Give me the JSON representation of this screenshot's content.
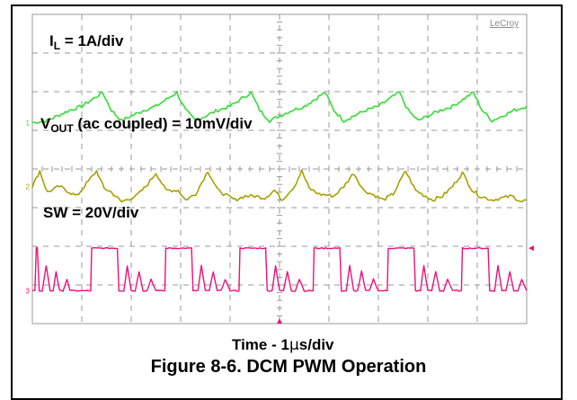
{
  "chart_data": {
    "type": "line",
    "title": "Figure 8-6. DCM PWM Operation",
    "brand": "LeCroy",
    "xlabel": {
      "prefix": "Time - 1",
      "mu": "μ",
      "suffix": "s/div"
    },
    "x_divisions": 10,
    "y_divisions": 8,
    "series": [
      {
        "name": "I_L",
        "label_main": "I",
        "label_sub": "L",
        "label_rest": " = 1A/div",
        "color": "#33dd33",
        "marker": "1",
        "x_div": [
          0,
          0.3,
          0.75,
          1.0,
          1.42,
          1.6,
          1.8,
          2.25,
          2.5,
          2.92,
          3.1,
          3.3,
          3.75,
          4.0,
          4.42,
          4.6,
          4.8,
          5.25,
          5.5,
          5.92,
          6.1,
          6.3,
          6.75,
          7.0,
          7.42,
          7.6,
          7.8,
          8.25,
          8.5,
          8.92,
          9.1,
          9.3,
          9.75,
          10.0
        ],
        "y_div": [
          5.2,
          5.25,
          5.52,
          5.62,
          5.98,
          5.52,
          5.25,
          5.52,
          5.62,
          5.98,
          5.52,
          5.25,
          5.52,
          5.62,
          5.98,
          5.52,
          5.25,
          5.52,
          5.62,
          5.98,
          5.52,
          5.25,
          5.52,
          5.62,
          5.98,
          5.52,
          5.25,
          5.52,
          5.62,
          5.98,
          5.52,
          5.25,
          5.52,
          5.62
        ]
      },
      {
        "name": "V_OUT",
        "label_main": "V",
        "label_sub": "OUT",
        "label_rest": " (ac coupled) = 10mV/div",
        "color": "#aaa000",
        "marker": "2",
        "x_div": [
          0,
          0.15,
          0.3,
          0.55,
          0.75,
          0.9,
          1.05,
          1.3,
          1.45,
          1.6,
          1.8,
          2.1,
          2.3,
          2.5,
          2.7,
          2.95,
          3.1,
          3.3,
          3.55,
          3.75,
          3.95,
          4.1,
          4.3,
          4.5,
          4.7,
          4.9,
          5.05,
          5.3,
          5.45,
          5.6,
          5.8,
          6.1,
          6.3,
          6.5,
          6.7,
          6.95,
          7.1,
          7.3,
          7.55,
          7.75,
          7.95,
          8.1,
          8.3,
          8.5,
          8.7,
          8.9,
          9.05,
          9.3,
          9.5,
          9.7,
          9.9,
          10.0
        ],
        "y_div": [
          3.55,
          3.95,
          3.4,
          3.55,
          3.4,
          3.3,
          3.55,
          3.95,
          3.5,
          3.4,
          3.15,
          3.3,
          3.55,
          3.9,
          3.45,
          3.45,
          3.2,
          3.35,
          3.95,
          3.45,
          3.3,
          3.2,
          3.3,
          3.3,
          3.25,
          3.45,
          3.2,
          3.55,
          3.95,
          3.5,
          3.35,
          3.3,
          3.55,
          3.9,
          3.45,
          3.3,
          3.2,
          3.35,
          3.95,
          3.45,
          3.3,
          3.2,
          3.3,
          3.55,
          3.9,
          3.45,
          3.3,
          3.2,
          3.25,
          3.3,
          3.15,
          3.2
        ]
      },
      {
        "name": "SW",
        "label_main": "SW = 20V/div",
        "label_sub": "",
        "label_rest": "",
        "color": "#ee1177",
        "marker": "3",
        "x_div": [
          0,
          0.05,
          0.08,
          0.1,
          0.14,
          0.2,
          0.28,
          0.36,
          0.42,
          0.48,
          0.55,
          0.62,
          0.7,
          0.76,
          0.82,
          0.9,
          1.0,
          1.1,
          1.18,
          1.2,
          1.23,
          1.72,
          1.75,
          1.78,
          1.85,
          1.92,
          2.0,
          2.08,
          2.16,
          2.24,
          2.32,
          2.4,
          2.5,
          2.6,
          2.68,
          2.7,
          2.73,
          3.22,
          3.25,
          3.28,
          3.35,
          3.42,
          3.5,
          3.58,
          3.66,
          3.74,
          3.82,
          3.9,
          4.0,
          4.1,
          4.18,
          4.2,
          4.23,
          4.72,
          4.75,
          4.78,
          4.85,
          4.92,
          5.0,
          5.08,
          5.16,
          5.24,
          5.32,
          5.4,
          5.5,
          5.6,
          5.68,
          5.7,
          5.73,
          6.22,
          6.25,
          6.28,
          6.35,
          6.42,
          6.5,
          6.58,
          6.66,
          6.74,
          6.82,
          6.9,
          7.0,
          7.1,
          7.18,
          7.2,
          7.23,
          7.72,
          7.75,
          7.78,
          7.85,
          7.92,
          8.0,
          8.08,
          8.16,
          8.24,
          8.32,
          8.4,
          8.5,
          8.6,
          8.68,
          8.7,
          8.73,
          9.22,
          9.25,
          9.28,
          9.35,
          9.42,
          9.5,
          9.58,
          9.66,
          9.74,
          9.82,
          9.9,
          10.0
        ],
        "y_div": [
          0.85,
          0.85,
          1.95,
          1.95,
          0.85,
          0.85,
          1.5,
          0.85,
          0.85,
          1.35,
          0.85,
          0.85,
          1.15,
          0.85,
          0.85,
          0.85,
          0.85,
          0.85,
          0.85,
          1.95,
          1.95,
          1.95,
          0.85,
          0.85,
          0.85,
          1.5,
          0.85,
          0.85,
          1.35,
          0.85,
          0.85,
          1.15,
          0.85,
          0.85,
          0.85,
          1.95,
          1.95,
          1.95,
          0.85,
          0.85,
          0.85,
          1.5,
          0.85,
          0.85,
          1.35,
          0.85,
          0.85,
          1.15,
          0.85,
          0.85,
          0.85,
          1.95,
          1.95,
          1.95,
          0.85,
          0.85,
          0.85,
          1.5,
          0.85,
          0.85,
          1.35,
          0.85,
          0.85,
          1.15,
          0.85,
          0.85,
          0.85,
          1.95,
          1.95,
          1.95,
          0.85,
          0.85,
          0.85,
          1.5,
          0.85,
          0.85,
          1.35,
          0.85,
          0.85,
          1.15,
          0.85,
          0.85,
          0.85,
          1.95,
          1.95,
          1.95,
          0.85,
          0.85,
          0.85,
          1.5,
          0.85,
          0.85,
          1.35,
          0.85,
          0.85,
          1.15,
          0.85,
          0.85,
          0.85,
          1.95,
          1.95,
          1.95,
          0.85,
          0.85,
          0.85,
          1.5,
          0.85,
          0.85,
          1.35,
          0.85,
          0.85,
          1.15,
          0.85
        ]
      }
    ],
    "colors": {
      "grid": "#9a9a9a",
      "frame": "#000000",
      "trigger_marker": "#ee1177"
    },
    "trigger_level_div": 1.95,
    "trigger_position_div": 5.0
  }
}
